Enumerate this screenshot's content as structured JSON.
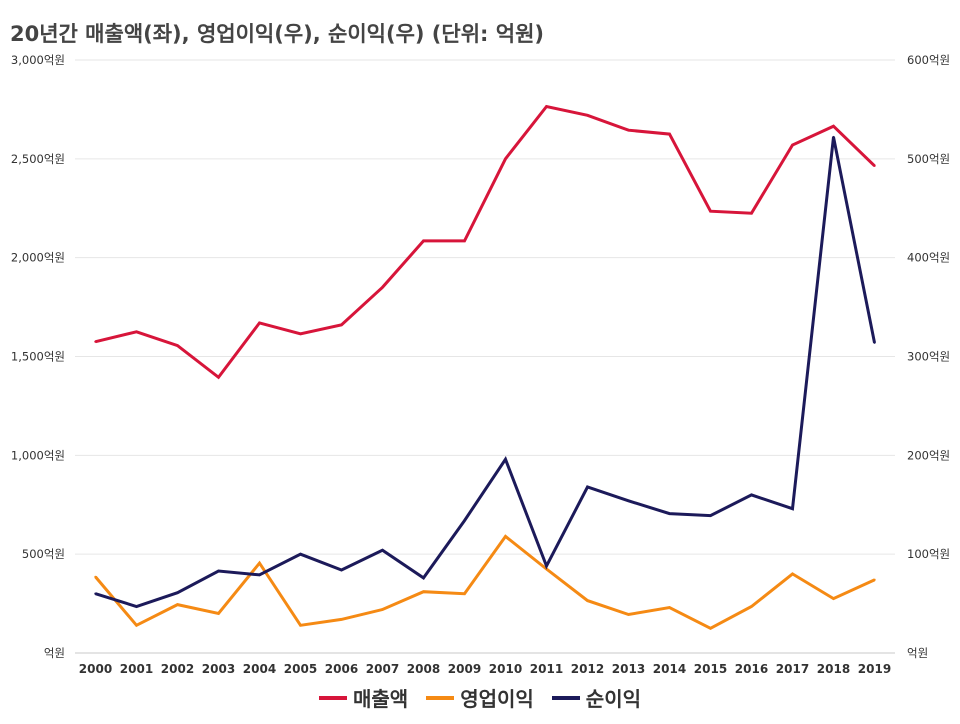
{
  "chart_data": {
    "type": "line",
    "title": "20년간 매출액(좌), 영업이익(우), 순이익(우) (단위: 억원)",
    "categories": [
      "2000",
      "2001",
      "2002",
      "2003",
      "2004",
      "2005",
      "2006",
      "2007",
      "2008",
      "2009",
      "2010",
      "2011",
      "2012",
      "2013",
      "2014",
      "2015",
      "2016",
      "2017",
      "2018",
      "2019"
    ],
    "left_axis": {
      "ylim": [
        0,
        3000
      ],
      "ticks": [
        0,
        500,
        1000,
        1500,
        2000,
        2500,
        3000
      ],
      "tick_labels": [
        "억원",
        "500억원",
        "1,000억원",
        "1,500억원",
        "2,000억원",
        "2,500억원",
        "3,000억원"
      ]
    },
    "right_axis": {
      "ylim": [
        0,
        600
      ],
      "ticks": [
        0,
        100,
        200,
        300,
        400,
        500,
        600
      ],
      "tick_labels": [
        "억원",
        "100억원",
        "200억원",
        "300억원",
        "400억원",
        "500억원",
        "600억원"
      ]
    },
    "series": [
      {
        "name": "매출액",
        "axis": "left",
        "color": "#d7153a",
        "values": [
          1575,
          1625,
          1555,
          1395,
          1670,
          1615,
          1660,
          1850,
          2085,
          2085,
          2500,
          2765,
          2720,
          2645,
          2625,
          2235,
          2225,
          2570,
          2665,
          2465
        ]
      },
      {
        "name": "영업이익",
        "axis": "right",
        "color": "#f58a14",
        "values": [
          77,
          28,
          49,
          40,
          91,
          28,
          34,
          44,
          62,
          60,
          118,
          85,
          53,
          39,
          46,
          25,
          47,
          80,
          55,
          74
        ]
      },
      {
        "name": "순이익",
        "axis": "right",
        "color": "#1c1a5a",
        "values": [
          60,
          47,
          61,
          83,
          79,
          100,
          84,
          104,
          76,
          134,
          196,
          88,
          168,
          154,
          141,
          139,
          160,
          146,
          522,
          314
        ]
      }
    ],
    "grid": true,
    "legend_position": "bottom"
  }
}
